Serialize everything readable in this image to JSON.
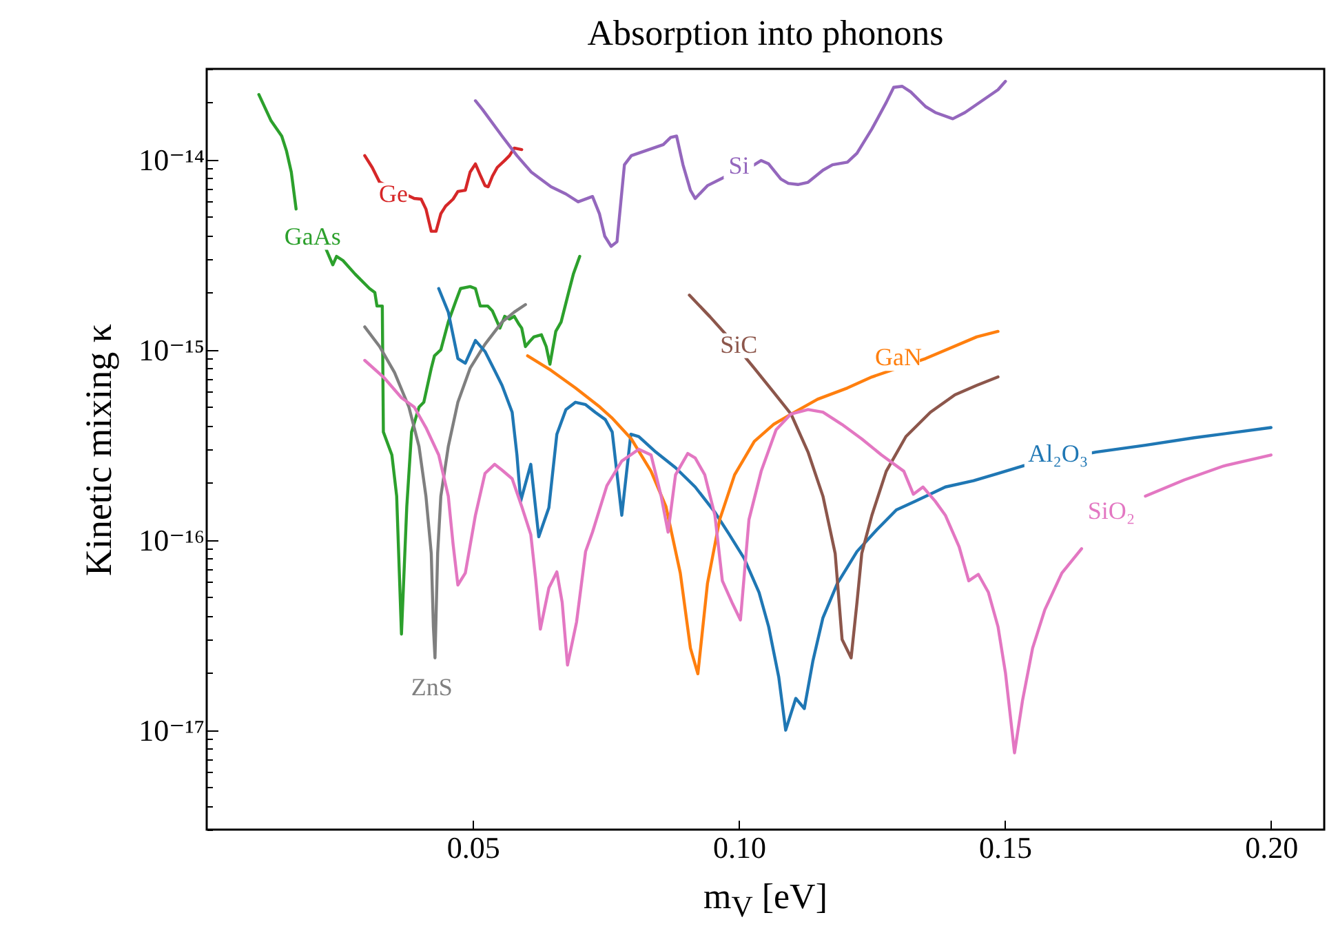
{
  "chart_data": {
    "type": "line",
    "title": "Absorption into phonons",
    "xlabel": "m$_{V}$ [eV]",
    "ylabel": "Kinetic mixing κ",
    "xlim": [
      0,
      0.21
    ],
    "ylim": [
      3e-18,
      3e-14
    ],
    "log": "y",
    "grid": false,
    "legend": false,
    "line_style": "solid",
    "marker": "none",
    "xticks": [
      0.05,
      {
        "value": 0.1,
        "label": "0.10"
      },
      0.15,
      {
        "value": 0.2,
        "label": "0.20"
      }
    ],
    "yticks": [
      {
        "value": 1e-17,
        "label": "10⁻¹⁷"
      },
      {
        "value": 1e-16,
        "label": "10⁻¹⁶"
      },
      {
        "value": 1e-15,
        "label": "10⁻¹⁵"
      },
      {
        "value": 1e-14,
        "label": "10⁻¹⁴"
      },
      {
        "value": 3e-18,
        "label": null
      },
      {
        "value": 4e-18,
        "label": null
      },
      {
        "value": 5e-18,
        "label": null
      },
      {
        "value": 6e-18,
        "label": null
      },
      {
        "value": 7e-18,
        "label": null
      },
      {
        "value": 8e-18,
        "label": null
      },
      {
        "value": 9e-18,
        "label": null
      },
      {
        "value": 2e-17,
        "label": null
      },
      {
        "value": 3e-17,
        "label": null
      },
      {
        "value": 4e-17,
        "label": null
      },
      {
        "value": 5e-17,
        "label": null
      },
      {
        "value": 6e-17,
        "label": null
      },
      {
        "value": 7e-17,
        "label": null
      },
      {
        "value": 8e-17,
        "label": null
      },
      {
        "value": 9e-17,
        "label": null
      },
      {
        "value": 2e-16,
        "label": null
      },
      {
        "value": 3e-16,
        "label": null
      },
      {
        "value": 4e-16,
        "label": null
      },
      {
        "value": 5e-16,
        "label": null
      },
      {
        "value": 6e-16,
        "label": null
      },
      {
        "value": 7e-16,
        "label": null
      },
      {
        "value": 8e-16,
        "label": null
      },
      {
        "value": 9e-16,
        "label": null
      },
      {
        "value": 2e-15,
        "label": null
      },
      {
        "value": 3e-15,
        "label": null
      },
      {
        "value": 4e-15,
        "label": null
      },
      {
        "value": 5e-15,
        "label": null
      },
      {
        "value": 6e-15,
        "label": null
      },
      {
        "value": 7e-15,
        "label": null
      },
      {
        "value": 8e-15,
        "label": null
      },
      {
        "value": 9e-15,
        "label": null
      },
      {
        "value": 2e-14,
        "label": null
      },
      {
        "value": 3e-14,
        "label": null
      }
    ],
    "series": [
      {
        "color": "#2ca02c",
        "x": [
          0.0098,
          0.0121,
          0.0141,
          0.015,
          0.0159,
          0.0168,
          0.0178,
          0.0224,
          0.0237,
          0.0244,
          0.0256,
          0.0279,
          0.0306,
          0.0316,
          0.032,
          0.033,
          0.0332,
          0.0348,
          0.0357,
          0.0366,
          0.0376,
          0.0385,
          0.0399,
          0.0408,
          0.0422,
          0.0428,
          0.044,
          0.0454,
          0.0468,
          0.0477,
          0.0495,
          0.0505,
          0.0514,
          0.0528,
          0.0537,
          0.0551,
          0.056,
          0.0569,
          0.0578,
          0.0587,
          0.0592,
          0.0599,
          0.0606,
          0.0615,
          0.0629,
          0.0638,
          0.0645,
          0.0656,
          0.0666,
          0.068,
          0.0689,
          0.0701
        ],
        "values": [
          2.2e-14,
          1.6e-14,
          1.33e-14,
          1.11e-14,
          8.6e-15,
          5.5e-15,
          null,
          3.4e-15,
          2.8e-15,
          3.1e-15,
          2.95e-15,
          2.5e-15,
          2.1e-15,
          2e-15,
          1.7e-15,
          1.7e-15,
          3.7e-16,
          2.8e-16,
          1.7e-16,
          3.2e-17,
          1.5e-16,
          3.7e-16,
          5e-16,
          5.3e-16,
          8e-16,
          9.3e-16,
          1e-15,
          1.4e-15,
          1.8e-15,
          2.1e-15,
          2.15e-15,
          2.1e-15,
          1.7e-15,
          1.7e-15,
          1.6e-15,
          1.3e-15,
          1.5e-15,
          1.45e-15,
          1.5e-15,
          1.36e-15,
          1.3e-15,
          1.04e-15,
          1.1e-15,
          1.17e-15,
          1.2e-15,
          1.04e-15,
          8.4e-16,
          1.25e-15,
          1.4e-15,
          2e-15,
          2.5e-15,
          3.1e-15
        ]
      },
      {
        "color": "#d62728",
        "x": [
          0.0297,
          0.0311,
          0.0325,
          0.039,
          0.0403,
          0.0412,
          0.0422,
          0.0431,
          0.044,
          0.0449,
          0.0463,
          0.0472,
          0.0486,
          0.0495,
          0.0505,
          0.0514,
          0.0523,
          0.0529,
          0.0537,
          0.0546,
          0.056,
          0.0569,
          0.0578,
          0.0592
        ],
        "values": [
          1.05e-14,
          9.1e-15,
          7.6e-15,
          6.25e-15,
          6.2e-15,
          5.5e-15,
          4.2e-15,
          4.2e-15,
          5.2e-15,
          5.7e-15,
          6.2e-15,
          6.8e-15,
          6.9e-15,
          8.6e-15,
          9.5e-15,
          8.3e-15,
          7.3e-15,
          7.2e-15,
          8.2e-15,
          9.1e-15,
          9.9e-15,
          1.05e-14,
          1.15e-14,
          1.13e-14
        ]
      },
      {
        "color": "#7f7f7f",
        "x": [
          0.0297,
          0.0325,
          0.0353,
          0.038,
          0.0399,
          0.0412,
          0.0422,
          0.0426,
          0.0429,
          0.0434,
          0.044,
          0.0454,
          0.0472,
          0.0495,
          0.0523,
          0.0555,
          0.0578,
          0.0599
        ],
        "values": [
          1.32e-15,
          1.04e-15,
          7.6e-16,
          5e-16,
          3.1e-16,
          1.7e-16,
          8.5e-17,
          3.5e-17,
          2.4e-17,
          8.5e-17,
          1.7e-16,
          3.1e-16,
          5.3e-16,
          8e-16,
          1.07e-15,
          1.4e-15,
          1.58e-15,
          1.73e-15
        ]
      },
      {
        "color": "#1f77b4",
        "x": [
          0.0436,
          0.0454,
          0.0472,
          0.0486,
          0.0505,
          0.0523,
          0.0541,
          0.0555,
          0.0574,
          0.0583,
          0.059,
          0.0609,
          0.0624,
          0.0643,
          0.0658,
          0.0675,
          0.0693,
          0.0712,
          0.073,
          0.0749,
          0.0762,
          0.078,
          0.0797,
          0.0812,
          0.0844,
          0.0881,
          0.0918,
          0.0955,
          0.0982,
          0.101,
          0.1038,
          0.1056,
          0.1075,
          0.1088,
          0.1107,
          0.1123,
          0.1139,
          0.1158,
          0.1185,
          0.1222,
          0.1259,
          0.1296,
          0.1332,
          0.1388,
          0.1441,
          0.1487,
          0.1533,
          0.1671,
          0.1764,
          0.1856,
          0.2
        ],
        "values": [
          2.1e-15,
          1.58e-15,
          9e-16,
          8.5e-16,
          1.12e-15,
          9.8e-16,
          7.8e-16,
          6.5e-16,
          4.7e-16,
          2.8e-16,
          1.6e-16,
          2.5e-16,
          1.04e-16,
          1.48e-16,
          3.6e-16,
          4.85e-16,
          5.3e-16,
          5.15e-16,
          4.7e-16,
          4.3e-16,
          3.7e-16,
          1.35e-16,
          3.6e-16,
          3.5e-16,
          2.9e-16,
          2.4e-16,
          1.9e-16,
          1.4e-16,
          1.07e-16,
          8e-17,
          5.3e-17,
          3.5e-17,
          1.9e-17,
          1e-17,
          1.47e-17,
          1.3e-17,
          2.3e-17,
          3.9e-17,
          5.9e-17,
          8.7e-17,
          1.13e-16,
          1.44e-16,
          1.6e-16,
          1.9e-16,
          2.05e-16,
          2.24e-16,
          2.45e-16,
          2.9e-16,
          3.15e-16,
          3.45e-16,
          3.9e-16
        ]
      },
      {
        "color": "#ff7f0e",
        "x": [
          0.0603,
          0.0647,
          0.0693,
          0.0739,
          0.0761,
          0.0798,
          0.0835,
          0.0863,
          0.089,
          0.0909,
          0.0923,
          0.0941,
          0.0964,
          0.0992,
          0.1029,
          0.1065,
          0.1102,
          0.1148,
          0.1204,
          0.125,
          0.1351,
          0.1447,
          0.1487
        ],
        "values": [
          9.3e-16,
          7.8e-16,
          6.3e-16,
          5e-16,
          4.4e-16,
          3.4e-16,
          2.3e-16,
          1.5e-16,
          6.7e-17,
          2.7e-17,
          1.98e-17,
          5.9e-17,
          1.28e-16,
          2.2e-16,
          3.3e-16,
          4.05e-16,
          4.65e-16,
          5.5e-16,
          6.3e-16,
          7.2e-16,
          9e-16,
          1.17e-15,
          1.25e-15
        ]
      },
      {
        "color": "#8c564b",
        "x": [
          0.0907,
          0.0946,
          0.0992,
          0.1029,
          0.1065,
          0.1098,
          0.113,
          0.1158,
          0.1181,
          0.1194,
          0.1211,
          0.1222,
          0.1231,
          0.125,
          0.1277,
          0.1314,
          0.136,
          0.1406,
          0.1447,
          0.1487
        ],
        "values": [
          1.94e-15,
          1.49e-15,
          1.07e-15,
          8e-16,
          6e-16,
          4.6e-16,
          2.9e-16,
          1.7e-16,
          8.5e-17,
          3e-17,
          2.4e-17,
          4.7e-17,
          8.5e-17,
          1.35e-16,
          2.3e-16,
          3.5e-16,
          4.7e-16,
          5.8e-16,
          6.5e-16,
          7.2e-16
        ]
      },
      {
        "color": "#9467bd",
        "x": [
          0.0505,
          0.0518,
          0.0555,
          0.0583,
          0.061,
          0.0647,
          0.0675,
          0.0698,
          0.0725,
          0.0738,
          0.0748,
          0.076,
          0.0771,
          0.0785,
          0.0798,
          0.0858,
          0.0872,
          0.0883,
          0.0895,
          0.0909,
          0.0918,
          0.0941,
          0.0973,
          0.1029,
          0.1042,
          0.1056,
          0.1079,
          0.1093,
          0.1111,
          0.113,
          0.1158,
          0.1176,
          0.1204,
          0.1222,
          0.125,
          0.1277,
          0.1291,
          0.1307,
          0.1323,
          0.1351,
          0.1369,
          0.1402,
          0.1425,
          0.1487,
          0.1501
        ],
        "values": [
          2.04e-14,
          1.84e-14,
          1.33e-14,
          1.05e-14,
          8.6e-15,
          7.2e-15,
          6.6e-15,
          6e-15,
          6.4e-15,
          5.2e-15,
          3.96e-15,
          3.5e-15,
          3.7e-15,
          9.4e-15,
          1.05e-14,
          1.2e-14,
          1.31e-14,
          1.33e-14,
          9.4e-15,
          6.9e-15,
          6.25e-15,
          7.3e-15,
          8.1e-15,
          9.4e-15,
          9.9e-15,
          9.5e-15,
          7.9e-15,
          7.5e-15,
          7.4e-15,
          7.6e-15,
          8.8e-15,
          9.4e-15,
          9.7e-15,
          1.08e-14,
          1.45e-14,
          2e-14,
          2.4e-14,
          2.43e-14,
          2.27e-14,
          1.9e-14,
          1.77e-14,
          1.64e-14,
          1.77e-14,
          2.33e-14,
          2.58e-14
        ]
      },
      {
        "color": "#e377c2",
        "x": [
          0.0297,
          0.0334,
          0.0366,
          0.039,
          0.0412,
          0.0436,
          0.0454,
          0.0463,
          0.0472,
          0.0486,
          0.0505,
          0.0523,
          0.0541,
          0.0555,
          0.0574,
          0.0592,
          0.0609,
          0.0618,
          0.0627,
          0.0643,
          0.0658,
          0.0668,
          0.0678,
          0.0695,
          0.0712,
          0.0725,
          0.0752,
          0.078,
          0.0812,
          0.0835,
          0.0854,
          0.0867,
          0.0881,
          0.0904,
          0.0918,
          0.0936,
          0.0955,
          0.0969,
          0.0987,
          0.1003,
          0.1019,
          0.1042,
          0.107,
          0.1098,
          0.113,
          0.1158,
          0.1194,
          0.1231,
          0.1268,
          0.131,
          0.1328,
          0.1346,
          0.1369,
          0.1388,
          0.1414,
          0.1432,
          0.145,
          0.1469,
          0.1487,
          0.1501,
          0.1518,
          0.1533,
          0.1552,
          0.1575,
          0.1607,
          0.1644,
          0.1699,
          0.1764,
          0.1837,
          0.1911,
          0.2
        ],
        "values": [
          8.8e-16,
          7.1e-16,
          5.6e-16,
          5e-16,
          3.9e-16,
          2.8e-16,
          1.7e-16,
          9.5e-17,
          5.8e-17,
          6.7e-17,
          1.35e-16,
          2.24e-16,
          2.5e-16,
          2.33e-16,
          2.1e-16,
          1.5e-16,
          1.07e-16,
          6.3e-17,
          3.4e-17,
          5.6e-17,
          6.8e-17,
          4.7e-17,
          2.2e-17,
          3.7e-17,
          8.7e-17,
          1.1e-16,
          1.93e-16,
          2.6e-16,
          3e-16,
          2.8e-16,
          1.7e-16,
          1.1e-16,
          2.2e-16,
          2.85e-16,
          2.7e-16,
          2.2e-16,
          1.35e-16,
          6.1e-17,
          4.7e-17,
          3.8e-17,
          1.28e-16,
          2.3e-16,
          3.8e-16,
          4.6e-16,
          4.85e-16,
          4.7e-16,
          4.05e-16,
          3.4e-16,
          2.8e-16,
          2.3e-16,
          1.74e-16,
          1.9e-16,
          1.6e-16,
          1.35e-16,
          9.2e-17,
          6.1e-17,
          6.6e-17,
          5.3e-17,
          3.5e-17,
          2e-17,
          7.6e-18,
          1.43e-17,
          2.7e-17,
          4.3e-17,
          6.7e-17,
          9e-17,
          null,
          1.7e-16,
          2.07e-16,
          2.45e-16,
          2.8e-16
        ]
      }
    ],
    "annotations": [
      {
        "text": "GaAs",
        "x": 0.0199,
        "y": 3.9e-15
      },
      {
        "text": "Ge",
        "x": 0.0351,
        "y": 6.5e-15
      },
      {
        "text": "ZnS",
        "x": 0.0423,
        "y": 1.66e-17
      },
      {
        "text": "Al₂O₃",
        "x": 0.16,
        "y": 2.8e-16
      },
      {
        "text": "GaN",
        "x": 0.13,
        "y": 9e-16
      },
      {
        "text": "SiC",
        "x": 0.1,
        "y": 1.05e-15
      },
      {
        "text": "Si",
        "x": 0.1,
        "y": 9.2e-15
      },
      {
        "text": "SiO₂",
        "x": 0.17,
        "y": 1.4e-16
      }
    ]
  }
}
